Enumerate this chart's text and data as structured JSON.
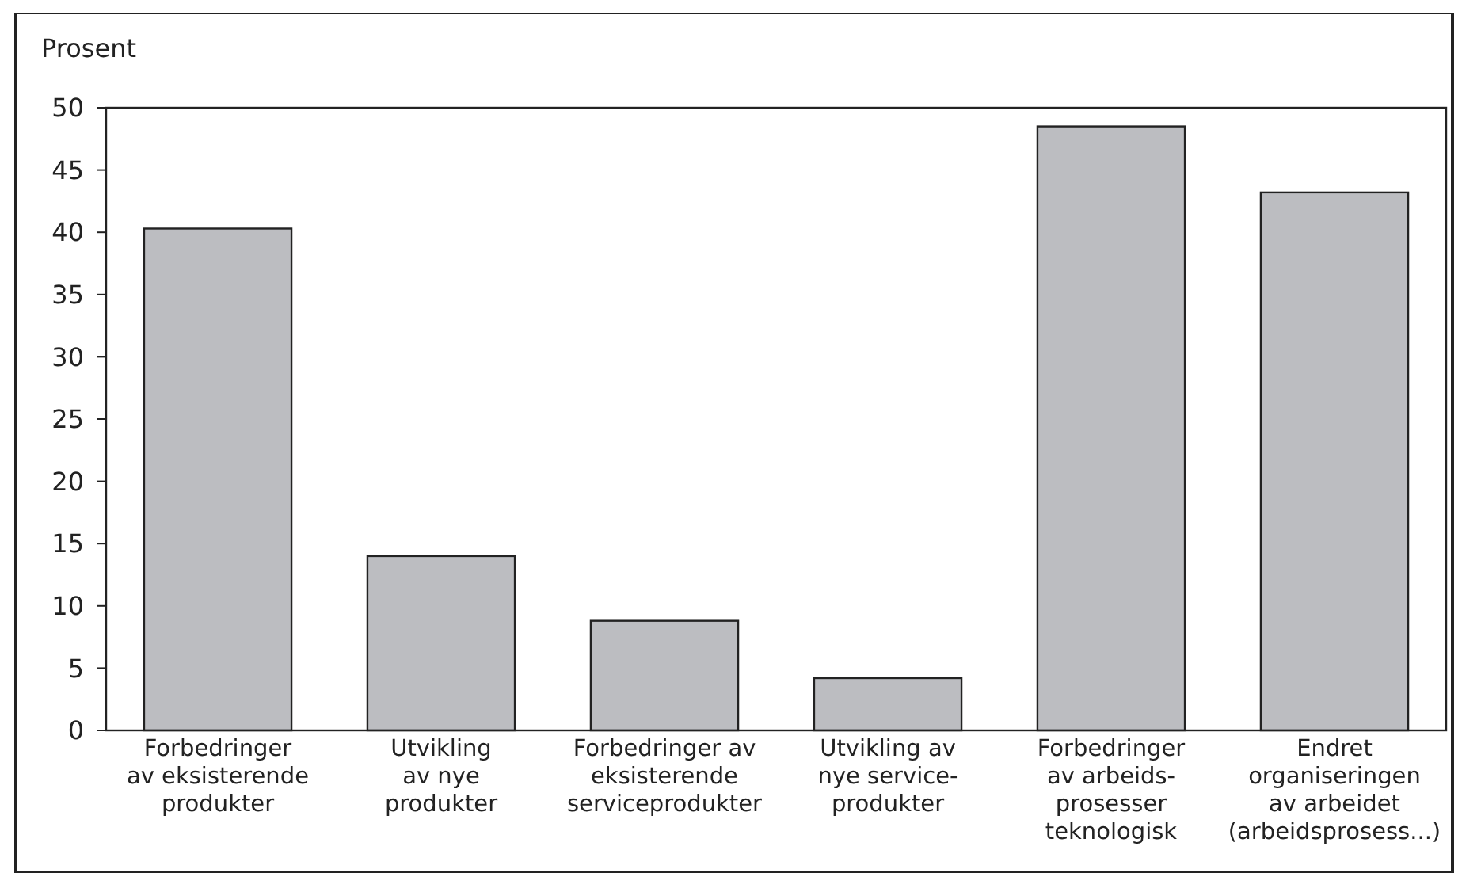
{
  "chart_data": {
    "type": "bar",
    "ylabel": "Prosent",
    "categories": [
      "Forbedringer\nav eksisterende\nprodukter",
      "Utvikling\nav nye\nprodukter",
      "Forbedringer av\neksisterende\nserviceprodukter",
      "Utvikling av\nnye service-\nprodukter",
      "Forbedringer\nav arbeids-\nprosesser\nteknologisk",
      "Endret\norganiseringen\nav arbeidet\n(arbeidsprosess...)"
    ],
    "values": [
      40.3,
      14.0,
      8.8,
      4.2,
      48.5,
      43.2
    ],
    "color": "#bcbdc1",
    "ylim": [
      0,
      50
    ],
    "yticks": [
      0,
      5,
      10,
      15,
      20,
      25,
      30,
      35,
      40,
      45,
      50
    ],
    "grid": false
  }
}
